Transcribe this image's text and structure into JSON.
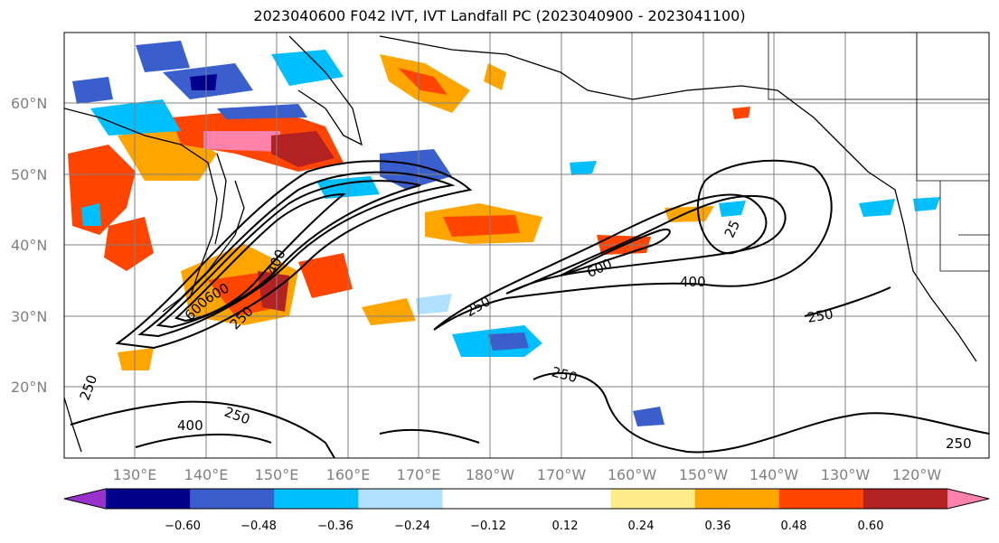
{
  "title": "2023040600 F042 IVT, IVT Landfall PC (2023040900 - 2023041100)",
  "lat_labels": [
    "60°N",
    "50°N",
    "40°N",
    "30°N",
    "20°N"
  ],
  "lon_labels": [
    "130°E",
    "140°E",
    "150°E",
    "160°E",
    "170°E",
    "180°W",
    "170°W",
    "160°W",
    "150°W",
    "140°W",
    "130°W",
    "120°W"
  ],
  "colorbar": {
    "colors": [
      "#9932cc",
      "#00008b",
      "#3a5fcd",
      "#00bfff",
      "#b0e2ff",
      "#ffffff",
      "#ffffff",
      "#ffec8b",
      "#ffa500",
      "#ff4500",
      "#b22222",
      "#ff82ab"
    ],
    "tick_labels": [
      "−0.60",
      "−0.48",
      "−0.36",
      "−0.24",
      "−0.12",
      "0.12",
      "0.24",
      "0.36",
      "0.48",
      "0.60"
    ]
  },
  "contour_labels": [
    {
      "text": "250"
    },
    {
      "text": "400"
    },
    {
      "text": "600"
    },
    {
      "text": "600"
    },
    {
      "text": "250"
    },
    {
      "text": "250"
    },
    {
      "text": "600"
    },
    {
      "text": "400"
    },
    {
      "text": "250"
    },
    {
      "text": "250"
    },
    {
      "text": "250"
    },
    {
      "text": "400"
    },
    {
      "text": "250"
    },
    {
      "text": "25"
    }
  ]
}
